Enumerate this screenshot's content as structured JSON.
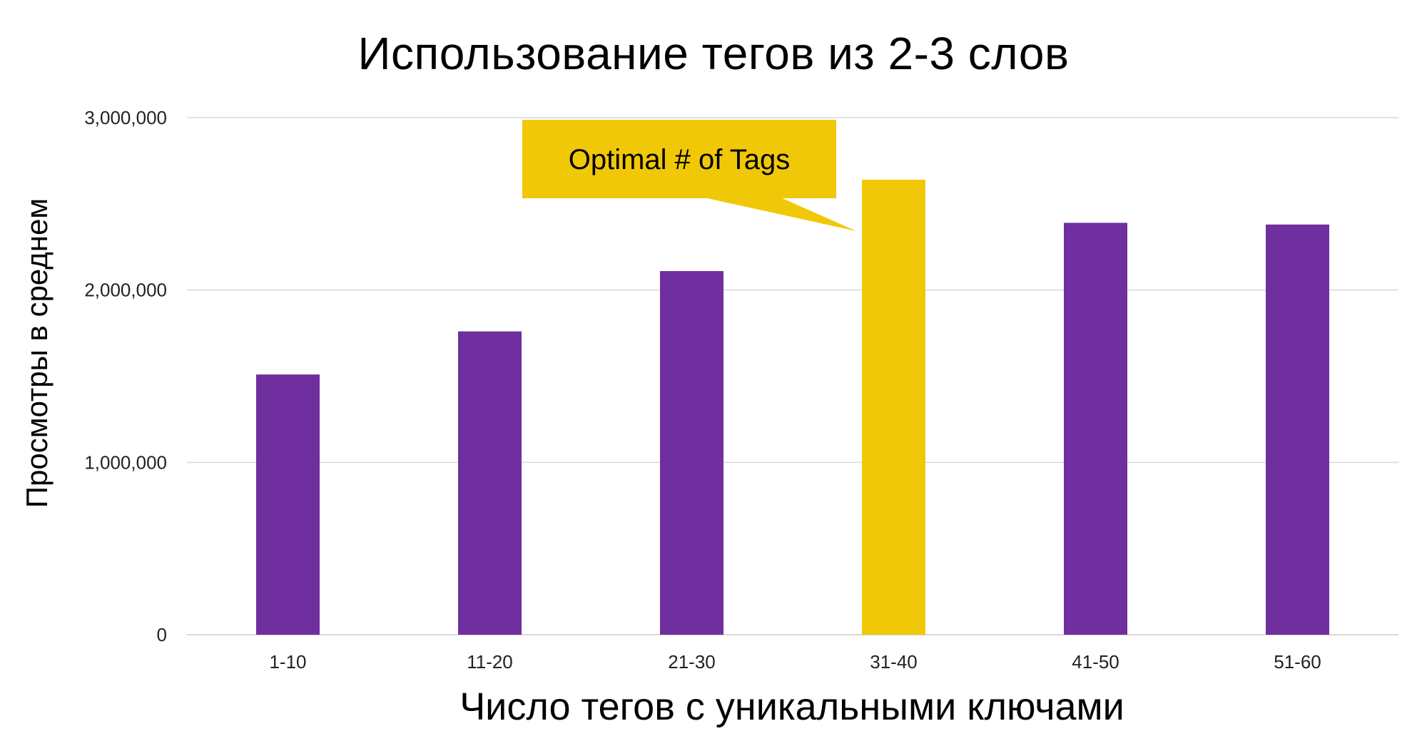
{
  "colors": {
    "bar": "#6F2F9E",
    "highlight": "#F0C808",
    "grid": "#D9D9D9",
    "text": "#000000",
    "tick_text": "#222222"
  },
  "chart_data": {
    "type": "bar",
    "title": "Использование тегов из 2-3 слов",
    "xlabel": "Число тегов с уникальными ключами",
    "ylabel": "Просмотры в среднем",
    "categories": [
      "1-10",
      "11-20",
      "21-30",
      "31-40",
      "41-50",
      "51-60"
    ],
    "values": [
      1510000,
      1760000,
      2110000,
      2640000,
      2390000,
      2380000
    ],
    "highlight_index": 3,
    "ylim": [
      0,
      3000000
    ],
    "yticks": [
      0,
      1000000,
      2000000,
      3000000
    ],
    "ytick_labels": [
      "0",
      "1,000,000",
      "2,000,000",
      "3,000,000"
    ],
    "grid": true,
    "annotation": {
      "text": "Optimal # of Tags",
      "target_category": "31-40"
    }
  }
}
